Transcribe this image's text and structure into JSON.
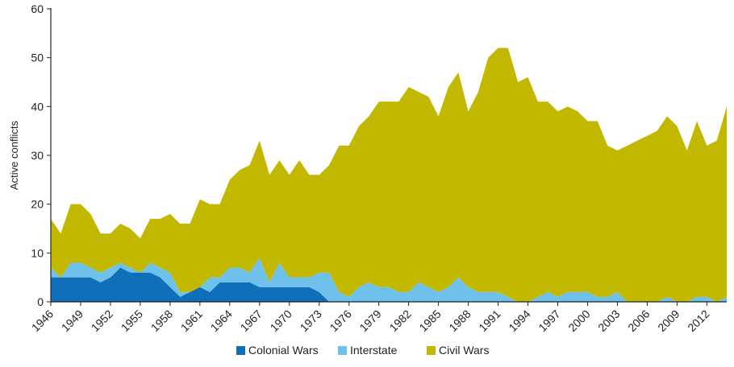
{
  "chart_data": {
    "type": "area",
    "stacked": true,
    "title": "",
    "xlabel": "",
    "ylabel": "Active conflicts",
    "ylim": [
      0,
      60
    ],
    "yticks": [
      0,
      10,
      20,
      30,
      40,
      50,
      60
    ],
    "grid": false,
    "legend_position": "bottom",
    "x": [
      1946,
      1947,
      1948,
      1949,
      1950,
      1951,
      1952,
      1953,
      1954,
      1955,
      1956,
      1957,
      1958,
      1959,
      1960,
      1961,
      1962,
      1963,
      1964,
      1965,
      1966,
      1967,
      1968,
      1969,
      1970,
      1971,
      1972,
      1973,
      1974,
      1975,
      1976,
      1977,
      1978,
      1979,
      1980,
      1981,
      1982,
      1983,
      1984,
      1985,
      1986,
      1987,
      1988,
      1989,
      1990,
      1991,
      1992,
      1993,
      1994,
      1995,
      1996,
      1997,
      1998,
      1999,
      2000,
      2001,
      2002,
      2003,
      2004,
      2005,
      2006,
      2007,
      2008,
      2009,
      2010,
      2011,
      2012,
      2013,
      2014
    ],
    "xtick_labels": [
      "1946",
      "1949",
      "1952",
      "1955",
      "1958",
      "1961",
      "1964",
      "1967",
      "1970",
      "1973",
      "1976",
      "1979",
      "1982",
      "1985",
      "1988",
      "1991",
      "1994",
      "1997",
      "2000",
      "2003",
      "2006",
      "2009",
      "2012"
    ],
    "series": [
      {
        "name": "Colonial Wars",
        "color": "#0f6fb8",
        "values": [
          5,
          5,
          5,
          5,
          5,
          4,
          5,
          7,
          6,
          6,
          6,
          5,
          3,
          1,
          2,
          3,
          2,
          4,
          4,
          4,
          4,
          3,
          3,
          3,
          3,
          3,
          3,
          2,
          0,
          0,
          0,
          0,
          0,
          0,
          0,
          0,
          0,
          0,
          0,
          0,
          0,
          0,
          0,
          0,
          0,
          0,
          0,
          0,
          0,
          0,
          0,
          0,
          0,
          0,
          0,
          0,
          0,
          0,
          0,
          0,
          0,
          0,
          0,
          0,
          0,
          0,
          0,
          0,
          0
        ]
      },
      {
        "name": "Interstate",
        "color": "#6ec1ea",
        "values": [
          2,
          0,
          3,
          3,
          2,
          2,
          2,
          1,
          1,
          0,
          2,
          2,
          3,
          1,
          0,
          0,
          3,
          1,
          3,
          3,
          2,
          6,
          1,
          5,
          2,
          2,
          2,
          4,
          6,
          2,
          1,
          3,
          4,
          3,
          3,
          2,
          2,
          4,
          3,
          2,
          3,
          5,
          3,
          2,
          2,
          2,
          1,
          0,
          0,
          1,
          2,
          1,
          2,
          2,
          2,
          1,
          1,
          2,
          0,
          0,
          0,
          0,
          1,
          0,
          0,
          1,
          1,
          0,
          1
        ]
      },
      {
        "name": "Civil Wars",
        "color": "#c3b800",
        "values": [
          10,
          9,
          12,
          12,
          11,
          8,
          7,
          8,
          8,
          7,
          9,
          10,
          12,
          14,
          14,
          18,
          15,
          15,
          18,
          20,
          22,
          24,
          22,
          21,
          21,
          24,
          21,
          20,
          22,
          30,
          31,
          33,
          34,
          38,
          38,
          39,
          42,
          39,
          39,
          36,
          41,
          42,
          36,
          41,
          48,
          50,
          51,
          45,
          46,
          40,
          39,
          38,
          38,
          37,
          35,
          36,
          31,
          29,
          32,
          33,
          34,
          35,
          37,
          36,
          31,
          36,
          31,
          33,
          39
        ]
      }
    ]
  }
}
